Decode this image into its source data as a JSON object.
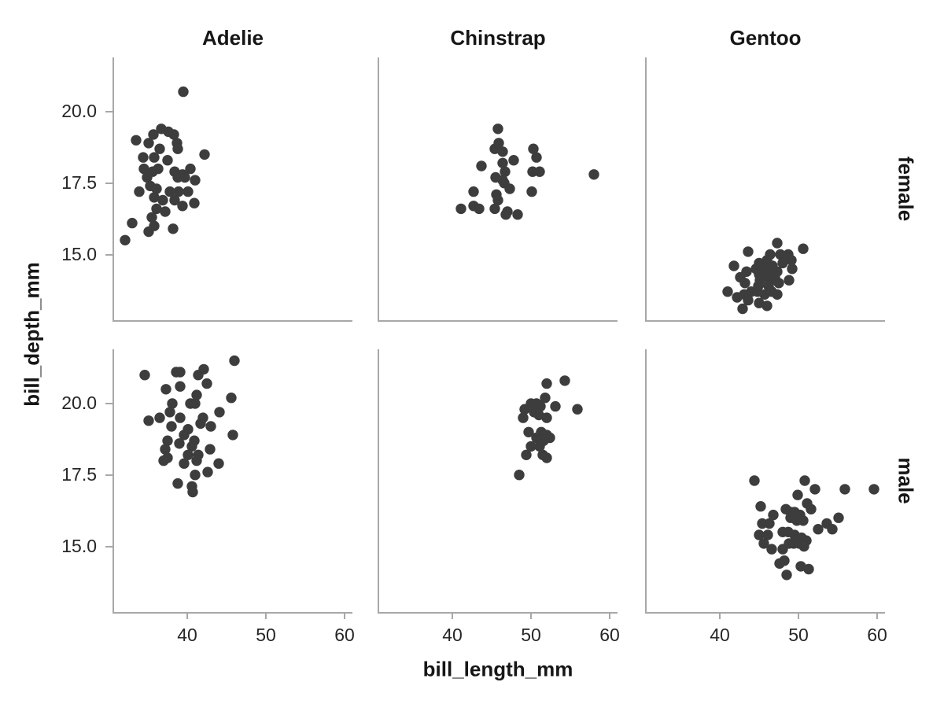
{
  "chart_data": {
    "type": "scatter",
    "facet_col_variable": "species",
    "facet_row_variable": "sex",
    "col_labels": [
      "Adelie",
      "Chinstrap",
      "Gentoo"
    ],
    "row_labels": [
      "female",
      "male"
    ],
    "xlabel": "bill_length_mm",
    "ylabel": "bill_depth_mm",
    "x_ticks": [
      40,
      50,
      60
    ],
    "x_tick_labels": [
      "40",
      "50",
      "60"
    ],
    "y_ticks": [
      20.0,
      17.5,
      15.0
    ],
    "y_tick_labels": [
      "20.0",
      "17.5",
      "15.0"
    ],
    "xlim": [
      30.7,
      61.0
    ],
    "ylim": [
      12.7,
      21.9
    ],
    "grid": false,
    "legend_position": "none",
    "marker": {
      "shape": "circle",
      "color": "#3d3d3d",
      "radius_px": 6.7
    },
    "spine_color": "#a8a8a8",
    "series": [
      {
        "species": "Adelie",
        "sex": "female",
        "points": [
          [
            39.5,
            20.7
          ],
          [
            36.7,
            19.4
          ],
          [
            37.6,
            19.3
          ],
          [
            35.7,
            19.2
          ],
          [
            38.3,
            19.2
          ],
          [
            33.5,
            19.0
          ],
          [
            35.1,
            18.9
          ],
          [
            38.7,
            18.9
          ],
          [
            36.5,
            18.7
          ],
          [
            38.8,
            18.7
          ],
          [
            34.4,
            18.4
          ],
          [
            35.8,
            18.4
          ],
          [
            37.5,
            18.3
          ],
          [
            42.2,
            18.5
          ],
          [
            34.5,
            18.0
          ],
          [
            35.6,
            17.9
          ],
          [
            36.3,
            18.0
          ],
          [
            38.4,
            17.9
          ],
          [
            40.4,
            18.0
          ],
          [
            39.4,
            17.8
          ],
          [
            34.9,
            17.7
          ],
          [
            38.8,
            17.7
          ],
          [
            39.7,
            17.7
          ],
          [
            41.0,
            17.6
          ],
          [
            35.3,
            17.4
          ],
          [
            33.9,
            17.2
          ],
          [
            36.1,
            17.3
          ],
          [
            37.8,
            17.2
          ],
          [
            38.9,
            17.2
          ],
          [
            40.1,
            17.2
          ],
          [
            35.8,
            17.0
          ],
          [
            36.9,
            16.9
          ],
          [
            38.4,
            16.9
          ],
          [
            39.4,
            16.7
          ],
          [
            40.9,
            16.8
          ],
          [
            36.1,
            16.6
          ],
          [
            37.2,
            16.5
          ],
          [
            35.5,
            16.3
          ],
          [
            38.2,
            15.9
          ],
          [
            35.1,
            15.8
          ],
          [
            35.8,
            16.0
          ],
          [
            33.0,
            16.1
          ],
          [
            32.1,
            15.5
          ]
        ]
      },
      {
        "species": "Chinstrap",
        "sex": "female",
        "points": [
          [
            45.8,
            19.4
          ],
          [
            45.9,
            18.9
          ],
          [
            45.4,
            18.7
          ],
          [
            46.4,
            18.6
          ],
          [
            50.3,
            18.7
          ],
          [
            50.7,
            18.4
          ],
          [
            47.8,
            18.3
          ],
          [
            43.7,
            18.1
          ],
          [
            46.4,
            18.2
          ],
          [
            46.7,
            17.9
          ],
          [
            45.5,
            17.7
          ],
          [
            50.2,
            17.9
          ],
          [
            51.1,
            17.9
          ],
          [
            58.0,
            17.8
          ],
          [
            46.4,
            17.6
          ],
          [
            46.6,
            17.5
          ],
          [
            42.7,
            17.2
          ],
          [
            47.3,
            17.3
          ],
          [
            50.1,
            17.2
          ],
          [
            45.6,
            17.1
          ],
          [
            45.8,
            16.9
          ],
          [
            41.1,
            16.6
          ],
          [
            42.7,
            16.7
          ],
          [
            43.4,
            16.6
          ],
          [
            45.4,
            16.6
          ],
          [
            47.0,
            16.5
          ],
          [
            46.8,
            16.4
          ],
          [
            48.3,
            16.4
          ]
        ]
      },
      {
        "species": "Gentoo",
        "sex": "female",
        "points": [
          [
            47.3,
            15.4
          ],
          [
            43.6,
            15.1
          ],
          [
            50.6,
            15.2
          ],
          [
            41.8,
            14.6
          ],
          [
            45.0,
            14.7
          ],
          [
            46.4,
            15.0
          ],
          [
            47.7,
            15.0
          ],
          [
            48.7,
            15.0
          ],
          [
            46.0,
            14.8
          ],
          [
            46.7,
            14.6
          ],
          [
            48.0,
            14.7
          ],
          [
            49.1,
            14.8
          ],
          [
            49.2,
            14.5
          ],
          [
            44.6,
            14.5
          ],
          [
            45.4,
            14.5
          ],
          [
            43.4,
            14.4
          ],
          [
            46.1,
            14.3
          ],
          [
            47.3,
            14.4
          ],
          [
            42.6,
            14.2
          ],
          [
            43.2,
            14.0
          ],
          [
            45.1,
            14.1
          ],
          [
            46.4,
            14.1
          ],
          [
            47.5,
            14.0
          ],
          [
            48.8,
            14.1
          ],
          [
            41.0,
            13.7
          ],
          [
            42.2,
            13.5
          ],
          [
            43.1,
            13.6
          ],
          [
            44.0,
            13.7
          ],
          [
            44.8,
            13.7
          ],
          [
            45.7,
            13.6
          ],
          [
            46.6,
            13.7
          ],
          [
            47.3,
            13.6
          ],
          [
            43.6,
            13.4
          ],
          [
            45.0,
            13.3
          ],
          [
            46.0,
            13.2
          ],
          [
            42.9,
            13.1
          ],
          [
            45.9,
            14.5
          ],
          [
            47.0,
            14.2
          ],
          [
            45.0,
            14.3
          ],
          [
            44.9,
            13.9
          ],
          [
            46.2,
            13.9
          ]
        ]
      },
      {
        "species": "Adelie",
        "sex": "male",
        "points": [
          [
            46.0,
            21.5
          ],
          [
            34.6,
            21.0
          ],
          [
            38.6,
            21.1
          ],
          [
            39.1,
            21.1
          ],
          [
            41.4,
            21.0
          ],
          [
            42.1,
            21.2
          ],
          [
            42.5,
            20.7
          ],
          [
            39.1,
            20.6
          ],
          [
            37.3,
            20.5
          ],
          [
            41.2,
            20.3
          ],
          [
            45.6,
            20.2
          ],
          [
            40.4,
            20.0
          ],
          [
            38.1,
            20.0
          ],
          [
            41.0,
            20.0
          ],
          [
            37.8,
            19.7
          ],
          [
            39.1,
            19.5
          ],
          [
            44.1,
            19.7
          ],
          [
            35.1,
            19.4
          ],
          [
            36.5,
            19.5
          ],
          [
            42.0,
            19.5
          ],
          [
            38.0,
            19.2
          ],
          [
            40.1,
            19.1
          ],
          [
            43.0,
            19.2
          ],
          [
            41.7,
            19.3
          ],
          [
            45.8,
            18.9
          ],
          [
            37.5,
            18.7
          ],
          [
            39.6,
            18.9
          ],
          [
            40.9,
            18.7
          ],
          [
            39.0,
            18.6
          ],
          [
            40.6,
            18.5
          ],
          [
            42.9,
            18.4
          ],
          [
            37.2,
            18.4
          ],
          [
            40.1,
            18.2
          ],
          [
            41.4,
            18.2
          ],
          [
            37.5,
            18.1
          ],
          [
            37.0,
            18.0
          ],
          [
            39.6,
            17.9
          ],
          [
            41.2,
            18.0
          ],
          [
            44.0,
            17.9
          ],
          [
            42.6,
            17.6
          ],
          [
            41.0,
            17.5
          ],
          [
            38.8,
            17.2
          ],
          [
            40.6,
            17.1
          ],
          [
            40.7,
            16.9
          ]
        ]
      },
      {
        "species": "Chinstrap",
        "sex": "male",
        "points": [
          [
            52.0,
            20.7
          ],
          [
            54.3,
            20.8
          ],
          [
            51.8,
            20.2
          ],
          [
            53.1,
            19.9
          ],
          [
            55.9,
            19.8
          ],
          [
            50.0,
            20.0
          ],
          [
            50.7,
            20.0
          ],
          [
            49.2,
            19.8
          ],
          [
            51.2,
            19.9
          ],
          [
            49.0,
            19.5
          ],
          [
            52.0,
            19.5
          ],
          [
            51.0,
            19.6
          ],
          [
            50.4,
            19.7
          ],
          [
            49.7,
            19.0
          ],
          [
            51.3,
            19.0
          ],
          [
            52.0,
            18.9
          ],
          [
            52.4,
            18.8
          ],
          [
            51.6,
            18.7
          ],
          [
            50.7,
            18.8
          ],
          [
            50.0,
            18.5
          ],
          [
            51.1,
            18.5
          ],
          [
            49.4,
            18.2
          ],
          [
            51.5,
            18.2
          ],
          [
            52.0,
            18.1
          ],
          [
            48.5,
            17.5
          ]
        ]
      },
      {
        "species": "Gentoo",
        "sex": "male",
        "points": [
          [
            44.4,
            17.3
          ],
          [
            50.8,
            17.3
          ],
          [
            52.1,
            17.0
          ],
          [
            55.9,
            17.0
          ],
          [
            59.6,
            17.0
          ],
          [
            49.9,
            16.8
          ],
          [
            51.1,
            16.5
          ],
          [
            51.6,
            16.3
          ],
          [
            45.2,
            16.4
          ],
          [
            46.8,
            16.1
          ],
          [
            48.4,
            16.3
          ],
          [
            49.0,
            16.2
          ],
          [
            49.5,
            16.2
          ],
          [
            50.2,
            16.1
          ],
          [
            49.0,
            16.0
          ],
          [
            49.8,
            15.9
          ],
          [
            50.6,
            15.9
          ],
          [
            45.4,
            15.8
          ],
          [
            46.3,
            15.8
          ],
          [
            55.1,
            16.0
          ],
          [
            53.6,
            15.8
          ],
          [
            52.5,
            15.6
          ],
          [
            54.3,
            15.6
          ],
          [
            45.0,
            15.4
          ],
          [
            46.1,
            15.4
          ],
          [
            48.0,
            15.5
          ],
          [
            48.7,
            15.5
          ],
          [
            49.5,
            15.4
          ],
          [
            50.4,
            15.3
          ],
          [
            51.0,
            15.2
          ],
          [
            45.6,
            15.1
          ],
          [
            46.6,
            14.9
          ],
          [
            48.0,
            14.9
          ],
          [
            48.8,
            15.1
          ],
          [
            49.4,
            15.1
          ],
          [
            50.1,
            15.1
          ],
          [
            50.7,
            15.0
          ],
          [
            48.2,
            14.5
          ],
          [
            47.6,
            14.4
          ],
          [
            50.3,
            14.3
          ],
          [
            51.3,
            14.2
          ],
          [
            48.5,
            14.0
          ]
        ]
      }
    ]
  }
}
